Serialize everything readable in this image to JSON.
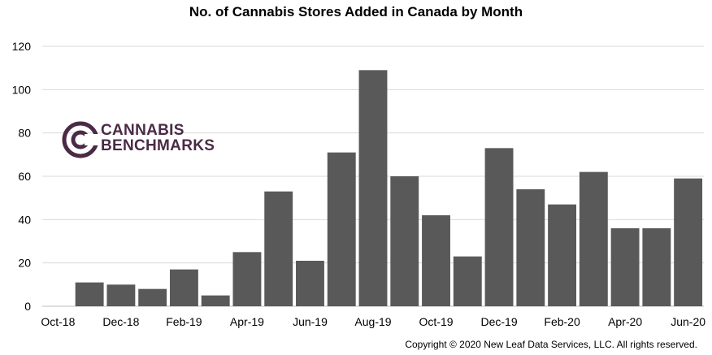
{
  "chart_data": {
    "type": "bar",
    "title": "No. of Cannabis Stores Added in Canada by Month",
    "xlabel": "",
    "ylabel": "",
    "ylim": [
      0,
      120
    ],
    "yticks": [
      0,
      20,
      40,
      60,
      80,
      100,
      120
    ],
    "grid": true,
    "bar_color": "#595959",
    "categories": [
      "Oct-18",
      "Nov-18",
      "Dec-18",
      "Jan-19",
      "Feb-19",
      "Mar-19",
      "Apr-19",
      "May-19",
      "Jun-19",
      "Jul-19",
      "Aug-19",
      "Sep-19",
      "Oct-19",
      "Nov-19",
      "Dec-19",
      "Jan-20",
      "Feb-20",
      "Mar-20",
      "Apr-20",
      "May-20",
      "Jun-20"
    ],
    "values": [
      0,
      11,
      10,
      8,
      17,
      5,
      25,
      53,
      21,
      71,
      109,
      60,
      42,
      23,
      73,
      54,
      47,
      62,
      36,
      36,
      59
    ],
    "x_tick_labels": [
      "Oct-18",
      "",
      "Dec-18",
      "",
      "Feb-19",
      "",
      "Apr-19",
      "",
      "Jun-19",
      "",
      "Aug-19",
      "",
      "Oct-19",
      "",
      "Dec-19",
      "",
      "Feb-20",
      "",
      "Apr-20",
      "",
      "Jun-20"
    ]
  },
  "logo": {
    "line1": "CANNABIS",
    "line2": "BENCHMARKS",
    "color": "#4a2a45"
  },
  "footer": {
    "copyright": "Copyright © 2020 New Leaf Data Services, LLC. All rights reserved."
  }
}
